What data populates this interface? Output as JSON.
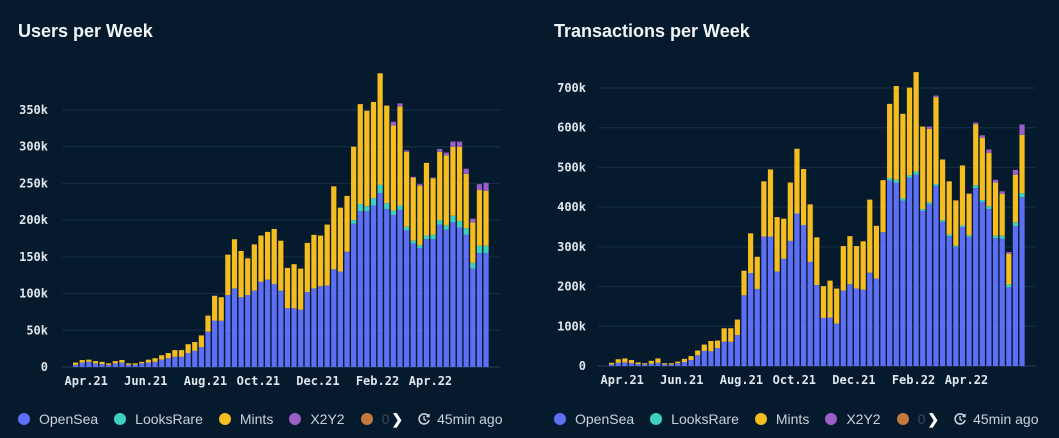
{
  "series_colors": {
    "OpenSea": "#5d6ff4",
    "LooksRare": "#3fcfc1",
    "Mints": "#f5bd1f",
    "X2Y2": "#9a5fc6",
    "Other": "#c47a3c"
  },
  "legend": {
    "items": [
      "OpenSea",
      "LooksRare",
      "Mints",
      "X2Y2"
    ],
    "truncated_item": "0",
    "more_icon": "chevron-right-icon",
    "refresh_icon": "clock-refresh-icon",
    "updated": "45min ago"
  },
  "chart_data": [
    {
      "type": "bar",
      "stacked": true,
      "title": "Users per Week",
      "xlabel": "",
      "ylabel": "",
      "ylim": [
        0,
        400000
      ],
      "yticks": [
        "0",
        "50k",
        "100k",
        "150k",
        "200k",
        "250k",
        "300k",
        "350k"
      ],
      "ytick_values": [
        0,
        50000,
        100000,
        150000,
        200000,
        250000,
        300000,
        350000
      ],
      "xtick_labels": [
        "Apr.21",
        "Jun.21",
        "Aug.21",
        "Oct.21",
        "Dec.21",
        "Feb.22",
        "Apr.22"
      ],
      "xtick_bar_index": [
        2,
        11,
        20,
        28,
        37,
        46,
        54
      ],
      "grid": true,
      "unit": "thousands",
      "series": [
        {
          "name": "OpenSea",
          "values": [
            3,
            6,
            7,
            5,
            4,
            3,
            5,
            6,
            3,
            3,
            5,
            6,
            7,
            10,
            12,
            14,
            14,
            19,
            22,
            27,
            48,
            63,
            63,
            98,
            107,
            95,
            98,
            104,
            116,
            119,
            113,
            104,
            80,
            80,
            78,
            102,
            107,
            110,
            111,
            133,
            130,
            157,
            195,
            212,
            212,
            220,
            237,
            215,
            207,
            214,
            186,
            168,
            162,
            174,
            174,
            194,
            187,
            197,
            190,
            180,
            134,
            155,
            155
          ]
        },
        {
          "name": "LooksRare",
          "values": [
            0,
            0,
            0,
            0,
            0,
            0,
            0,
            0,
            0,
            0,
            0,
            0,
            0,
            0,
            0,
            0,
            0,
            0,
            0,
            0,
            0,
            0,
            0,
            0,
            0,
            0,
            0,
            0,
            0,
            0,
            0,
            0,
            0,
            0,
            0,
            0,
            0,
            0,
            0,
            0,
            0,
            0,
            5,
            10,
            7,
            10,
            11,
            8,
            6,
            6,
            5,
            4,
            4,
            5,
            6,
            6,
            6,
            9,
            9,
            9,
            8,
            10,
            10
          ]
        },
        {
          "name": "Mints",
          "values": [
            3,
            3.5,
            3,
            3,
            3,
            2,
            3,
            3.5,
            2,
            2,
            2,
            4,
            5,
            6,
            7,
            9,
            9,
            12,
            12,
            16,
            22,
            34,
            32,
            55,
            67,
            63,
            50,
            63,
            63,
            65,
            75,
            68,
            55,
            60,
            56,
            67,
            73,
            69,
            83,
            113,
            87,
            76,
            100,
            136,
            130,
            131,
            152,
            133,
            116,
            135,
            102,
            86,
            81,
            99,
            77,
            93,
            95,
            94,
            101,
            74,
            55,
            76,
            75
          ]
        },
        {
          "name": "X2Y2",
          "values": [
            0,
            0,
            0,
            0,
            0,
            0,
            0,
            0,
            0,
            0,
            0,
            0,
            0,
            0,
            0,
            0,
            0,
            0,
            0,
            0,
            0,
            0,
            0,
            0,
            0,
            0,
            0,
            0,
            0,
            0,
            0,
            0,
            0,
            0,
            0,
            0,
            0,
            0,
            0,
            0,
            0,
            0,
            0,
            0,
            0,
            0,
            0,
            0,
            5,
            4,
            2,
            1,
            2,
            0,
            1,
            4,
            4,
            7,
            7,
            7,
            5,
            8,
            11
          ]
        }
      ]
    },
    {
      "type": "bar",
      "stacked": true,
      "title": "Transactions per Week",
      "xlabel": "",
      "ylabel": "",
      "ylim": [
        0,
        760000
      ],
      "yticks": [
        "0",
        "100k",
        "200k",
        "300k",
        "400k",
        "500k",
        "600k",
        "700k"
      ],
      "ytick_values": [
        0,
        100000,
        200000,
        300000,
        400000,
        500000,
        600000,
        700000
      ],
      "xtick_labels": [
        "Apr.21",
        "Jun.21",
        "Aug.21",
        "Oct.21",
        "Dec.21",
        "Feb.22",
        "Apr.22"
      ],
      "xtick_bar_index": [
        2,
        11,
        20,
        28,
        37,
        46,
        54
      ],
      "grid": true,
      "unit": "thousands",
      "series": [
        {
          "name": "OpenSea",
          "values": [
            4,
            8,
            9,
            7,
            5,
            4,
            6,
            8,
            4,
            4,
            7,
            10,
            15,
            27,
            38,
            37,
            45,
            61,
            61,
            78,
            178,
            234,
            194,
            326,
            326,
            238,
            270,
            315,
            384,
            355,
            262,
            204,
            121,
            122,
            107,
            190,
            206,
            195,
            192,
            235,
            220,
            337,
            467,
            461,
            416,
            474,
            482,
            390,
            407,
            453,
            363,
            327,
            300,
            350,
            325,
            448,
            413,
            395,
            322,
            320,
            198,
            352,
            425
          ]
        },
        {
          "name": "LooksRare",
          "values": [
            0,
            0,
            0,
            0,
            0,
            0,
            0,
            0,
            0,
            0,
            0,
            0,
            0,
            0,
            0,
            0,
            0,
            0,
            0,
            0,
            0,
            0,
            0,
            0,
            0,
            0,
            0,
            0,
            0,
            0,
            0,
            0,
            0,
            0,
            0,
            0,
            0,
            0,
            0,
            0,
            0,
            0,
            6,
            8,
            6,
            6,
            8,
            5,
            5,
            5,
            4,
            4,
            3,
            4,
            4,
            7,
            5,
            7,
            6,
            8,
            7,
            10,
            10
          ]
        },
        {
          "name": "Mints",
          "values": [
            4,
            9,
            10,
            8,
            4,
            3,
            7,
            11,
            3,
            3,
            4,
            8,
            10,
            12,
            16,
            26,
            19,
            34,
            34,
            39,
            62,
            100,
            81,
            139,
            169,
            137,
            101,
            147,
            163,
            141,
            145,
            120,
            80,
            93,
            88,
            112,
            121,
            107,
            122,
            184,
            133,
            131,
            187,
            236,
            213,
            221,
            250,
            208,
            185,
            219,
            153,
            134,
            114,
            151,
            105,
            154,
            157,
            135,
            134,
            105,
            78,
            119,
            147
          ]
        },
        {
          "name": "X2Y2",
          "values": [
            0,
            0,
            0,
            0,
            0,
            0,
            0,
            0,
            0,
            0,
            0,
            0,
            0,
            0,
            0,
            0,
            0,
            0,
            0,
            0,
            0,
            0,
            0,
            0,
            0,
            0,
            0,
            0,
            0,
            0,
            0,
            0,
            0,
            0,
            0,
            0,
            0,
            0,
            0,
            0,
            0,
            0,
            0,
            0,
            0,
            0,
            0,
            0,
            6,
            4,
            0,
            0,
            0,
            0,
            0,
            4,
            6,
            8,
            7,
            7,
            4,
            13,
            26
          ]
        }
      ]
    }
  ]
}
